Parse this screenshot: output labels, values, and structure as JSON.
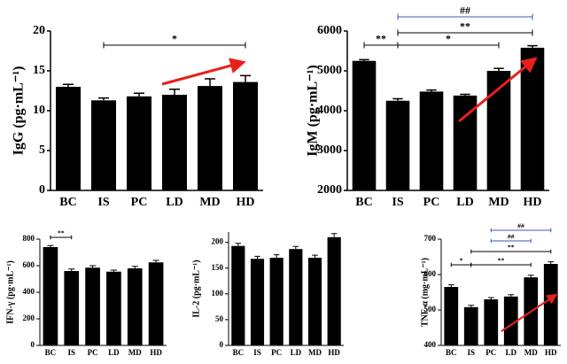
{
  "chart_data": [
    {
      "type": "bar",
      "y_label": "IgG (pg·mL⁻¹)",
      "categories": [
        "BC",
        "IS",
        "PC",
        "LD",
        "MD",
        "HD"
      ],
      "values": [
        13,
        11.3,
        11.8,
        12,
        13.1,
        13.6
      ],
      "errors": [
        0.3,
        0.3,
        0.4,
        0.7,
        0.9,
        0.8
      ],
      "color": "#000000",
      "ylim": [
        0,
        20
      ],
      "yticks": [
        0,
        5,
        10,
        15,
        20
      ],
      "annotations": [
        {
          "text": "*",
          "from": 1,
          "to": 5,
          "color": "#000000"
        }
      ]
    },
    {
      "type": "bar",
      "y_label": "IgM (pg·mL⁻¹)",
      "categories": [
        "BC",
        "IS",
        "PC",
        "LD",
        "MD",
        "HD"
      ],
      "values": [
        5250,
        4250,
        4480,
        4380,
        5000,
        5580
      ],
      "errors": [
        30,
        50,
        40,
        30,
        60,
        50
      ],
      "color": "#000000",
      "ylim": [
        2000,
        6000
      ],
      "yticks": [
        2000,
        3000,
        4000,
        5000,
        6000
      ],
      "annotations": [
        {
          "text": "**",
          "from": 0,
          "to": 1,
          "color": "#000000"
        },
        {
          "text": "*",
          "from": 1,
          "to": 4,
          "color": "#000000"
        },
        {
          "text": "**",
          "from": 1,
          "to": 5,
          "color": "#000000"
        },
        {
          "text": "##",
          "from": 1,
          "to": 5,
          "color": "#3a5bb0"
        }
      ]
    },
    {
      "type": "bar",
      "y_label": "IFN-γ (pg·mL⁻¹)",
      "categories": [
        "BC",
        "IS",
        "PC",
        "LD",
        "MD",
        "HD"
      ],
      "values": [
        740,
        560,
        585,
        555,
        580,
        625
      ],
      "errors": [
        12,
        15,
        15,
        12,
        15,
        15
      ],
      "color": "#000000",
      "ylim": [
        0,
        800
      ],
      "yticks": [
        0,
        200,
        400,
        600,
        800
      ],
      "annotations": [
        {
          "text": "**",
          "from": 0,
          "to": 1,
          "color": "#000000"
        }
      ]
    },
    {
      "type": "bar",
      "y_label": "IL-2 (pg·mL⁻¹)",
      "categories": [
        "BC",
        "IS",
        "PC",
        "LD",
        "MD",
        "HD"
      ],
      "values": [
        193,
        168,
        170,
        187,
        170,
        210
      ],
      "errors": [
        5,
        5,
        6,
        5,
        5,
        7
      ],
      "color": "#000000",
      "ylim": [
        0,
        220
      ],
      "yticks": [
        0,
        50,
        100,
        150,
        200
      ],
      "annotations": []
    },
    {
      "type": "bar",
      "y_label": "TNF-α (mg·mL⁻¹)",
      "categories": [
        "BC",
        "IS",
        "PC",
        "LD",
        "MD",
        "HD"
      ],
      "values": [
        565,
        508,
        530,
        538,
        592,
        630
      ],
      "errors": [
        6,
        5,
        5,
        5,
        6,
        6
      ],
      "color": "#000000",
      "ylim": [
        400,
        700
      ],
      "yticks": [
        400,
        500,
        600,
        700
      ],
      "annotations": [
        {
          "text": "*",
          "from": 0,
          "to": 1,
          "color": "#000000"
        },
        {
          "text": "**",
          "from": 1,
          "to": 4,
          "color": "#000000"
        },
        {
          "text": "**",
          "from": 1,
          "to": 5,
          "color": "#000000"
        },
        {
          "text": "##",
          "from": 2,
          "to": 4,
          "color": "#3a5bb0"
        },
        {
          "text": "##",
          "from": 2,
          "to": 5,
          "color": "#3a5bb0"
        }
      ]
    }
  ]
}
